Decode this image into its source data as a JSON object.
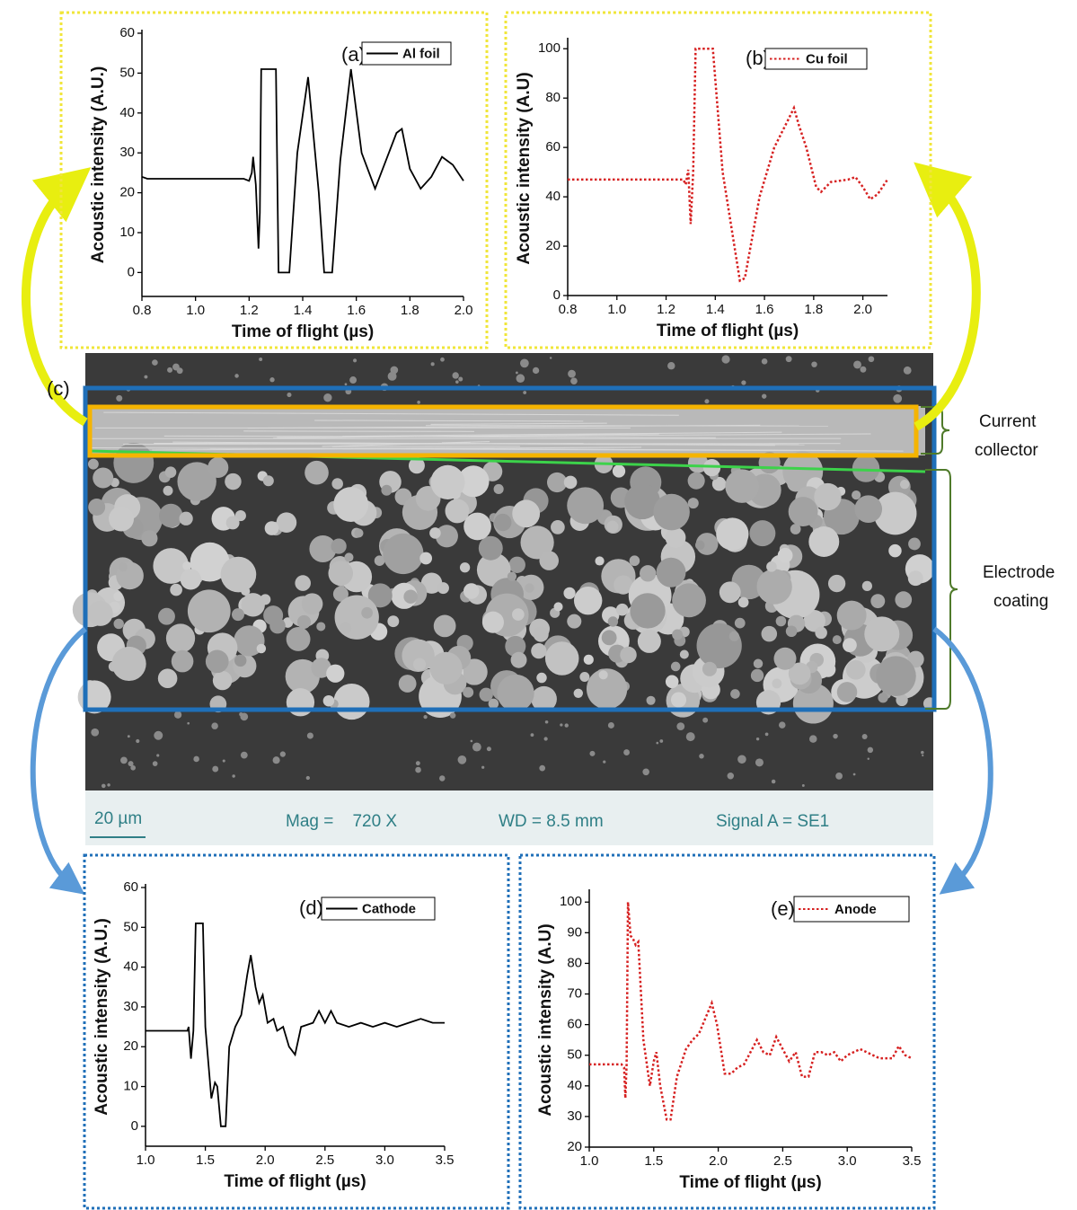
{
  "chart_data": [
    {
      "type": "line",
      "panel_label": "(a)",
      "xlabel": "Time of flight (µs)",
      "ylabel": "Acoustic intensity (A.U.)",
      "xlim": [
        0.8,
        2.0
      ],
      "ylim": [
        -6,
        60
      ],
      "xticks": [
        0.8,
        {
          "value": 1,
          "label": "1.0"
        },
        1.2,
        1.4,
        1.6,
        1.8,
        {
          "value": 2,
          "label": "2.0"
        }
      ],
      "yticks": [
        0,
        10,
        20,
        30,
        40,
        50,
        60
      ],
      "legend": "upper right",
      "x": [
        0.8,
        0.82,
        1.18,
        1.2,
        1.21,
        1.215,
        1.225,
        1.235,
        1.24,
        1.245,
        1.25,
        1.29,
        1.3,
        1.31,
        1.35,
        1.38,
        1.42,
        1.46,
        1.48,
        1.51,
        1.54,
        1.58,
        1.62,
        1.67,
        1.71,
        1.75,
        1.77,
        1.8,
        1.84,
        1.88,
        1.92,
        1.96,
        2.0
      ],
      "series": [
        {
          "name": "Al foil",
          "color": "#000000",
          "style": "solid",
          "values": [
            24,
            23.5,
            23.5,
            23,
            25,
            29,
            22,
            6,
            15,
            51,
            51,
            51,
            51,
            0,
            0,
            30,
            49,
            20,
            0,
            0,
            28,
            51,
            30,
            21,
            28,
            35,
            36,
            26,
            21,
            24,
            29,
            27,
            23
          ]
        }
      ]
    },
    {
      "type": "line",
      "panel_label": "(b)",
      "xlabel": "Time of flight (µs)",
      "ylabel": "Acoustic intensity (A.U)",
      "xlim": [
        0.8,
        2.1
      ],
      "ylim": [
        0,
        103
      ],
      "xticks": [
        0.8,
        {
          "value": 1,
          "label": "1.0"
        },
        1.2,
        1.4,
        1.6,
        1.8,
        {
          "value": 2,
          "label": "2.0"
        }
      ],
      "yticks": [
        0,
        20,
        40,
        60,
        80,
        100
      ],
      "legend": "upper right",
      "x": [
        0.8,
        1.27,
        1.28,
        1.29,
        1.3,
        1.31,
        1.32,
        1.39,
        1.43,
        1.5,
        1.52,
        1.58,
        1.64,
        1.7,
        1.72,
        1.74,
        1.77,
        1.81,
        1.83,
        1.87,
        1.94,
        1.97,
        2.0,
        2.03,
        2.06,
        2.1
      ],
      "series": [
        {
          "name": "Cu foil",
          "color": "#d62020",
          "style": "dotted",
          "values": [
            47,
            47,
            45,
            51,
            29,
            50,
            100,
            100,
            50,
            6,
            7,
            40,
            60,
            72,
            76,
            69,
            60,
            44,
            42,
            46,
            47,
            48,
            44,
            39,
            41,
            47
          ]
        }
      ]
    },
    {
      "type": "line",
      "panel_label": "(d)",
      "xlabel": "Time of flight (µs)",
      "ylabel": "Acoustic intensity (A.U.)",
      "xlim": [
        1.0,
        3.5
      ],
      "ylim": [
        -5,
        60
      ],
      "xticks": [
        {
          "value": 1,
          "label": "1.0"
        },
        1.5,
        {
          "value": 2,
          "label": "2.0"
        },
        2.5,
        {
          "value": 3,
          "label": "3.0"
        },
        3.5
      ],
      "yticks": [
        0,
        10,
        20,
        30,
        40,
        50,
        60
      ],
      "legend": "upper right",
      "x": [
        1.0,
        1.35,
        1.36,
        1.38,
        1.4,
        1.42,
        1.48,
        1.5,
        1.55,
        1.58,
        1.6,
        1.63,
        1.67,
        1.7,
        1.75,
        1.8,
        1.85,
        1.88,
        1.92,
        1.95,
        1.98,
        2.02,
        2.07,
        2.1,
        2.15,
        2.2,
        2.25,
        2.3,
        2.4,
        2.45,
        2.5,
        2.55,
        2.6,
        2.7,
        2.8,
        2.9,
        3.0,
        3.1,
        3.2,
        3.3,
        3.4,
        3.5
      ],
      "series": [
        {
          "name": "Cathode",
          "color": "#000000",
          "style": "solid",
          "values": [
            24,
            24,
            25,
            17,
            24,
            51,
            51,
            25,
            7,
            11,
            10,
            0,
            0,
            20,
            25,
            28,
            38,
            43,
            35,
            31,
            33,
            26,
            27,
            24,
            25,
            20,
            18,
            25,
            26,
            29,
            26,
            29,
            26,
            25,
            26,
            25,
            26,
            25,
            26,
            27,
            26,
            26
          ]
        }
      ]
    },
    {
      "type": "line",
      "panel_label": "(e)",
      "xlabel": "Time of flight (µs)",
      "ylabel": "Acoustic intensity (A.U)",
      "xlim": [
        1.0,
        3.5
      ],
      "ylim": [
        20,
        103
      ],
      "xticks": [
        {
          "value": 1,
          "label": "1.0"
        },
        1.5,
        {
          "value": 2,
          "label": "2.0"
        },
        2.5,
        {
          "value": 3,
          "label": "3.0"
        },
        3.5
      ],
      "yticks": [
        20,
        30,
        40,
        50,
        60,
        70,
        80,
        90,
        100
      ],
      "legend": "upper right",
      "x": [
        1.0,
        1.25,
        1.27,
        1.28,
        1.29,
        1.3,
        1.32,
        1.34,
        1.36,
        1.38,
        1.42,
        1.47,
        1.5,
        1.52,
        1.55,
        1.6,
        1.63,
        1.68,
        1.75,
        1.8,
        1.85,
        1.9,
        1.95,
        1.99,
        2.05,
        2.1,
        2.15,
        2.2,
        2.3,
        2.35,
        2.4,
        2.45,
        2.5,
        2.55,
        2.6,
        2.65,
        2.7,
        2.75,
        2.8,
        2.85,
        2.9,
        2.95,
        3.0,
        3.05,
        3.1,
        3.2,
        3.25,
        3.3,
        3.35,
        3.4,
        3.45,
        3.5
      ],
      "series": [
        {
          "name": "Anode",
          "color": "#d62020",
          "style": "dotted",
          "values": [
            47,
            47,
            46,
            36,
            47,
            100,
            89,
            88,
            86,
            87,
            55,
            40,
            48,
            51,
            40,
            29,
            29,
            43,
            52,
            55,
            57,
            62,
            67,
            60,
            44,
            44,
            46,
            47,
            55,
            51,
            50,
            56,
            52,
            48,
            51,
            43,
            43,
            51,
            51,
            50,
            51,
            48,
            50,
            51,
            52,
            50,
            49,
            49,
            49,
            53,
            50,
            49
          ]
        }
      ]
    }
  ],
  "image": {
    "panel_label": "(c)",
    "scale_bar": "20 µm",
    "mag": "Mag =    720 X",
    "wd": "WD = 8.5 mm",
    "signal": "Signal A = SE1",
    "annotations": [
      [
        "Current",
        "collector"
      ],
      [
        "Electrode",
        "coating"
      ]
    ]
  }
}
